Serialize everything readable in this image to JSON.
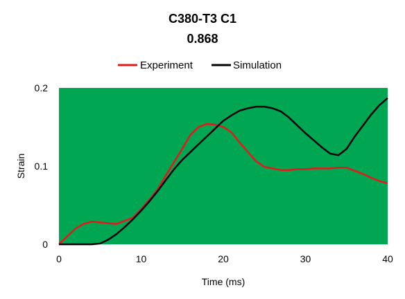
{
  "chart_data": {
    "type": "line",
    "title": "C380-T3 C1",
    "subtitle": "0.868",
    "xlabel": "Time (ms)",
    "ylabel": "Strain",
    "xlim": [
      0,
      40
    ],
    "ylim": [
      0,
      0.2
    ],
    "x_ticks": [
      "0",
      "10",
      "20",
      "30",
      "40"
    ],
    "y_ticks": [
      "0",
      "0.1",
      "0.2"
    ],
    "plot_background": "#00a651",
    "legend_position": "top",
    "series": [
      {
        "name": "Experiment",
        "color": "#e31a1c",
        "x": [
          0,
          1,
          2,
          3,
          4,
          5,
          6,
          7,
          8,
          9,
          10,
          11,
          12,
          13,
          14,
          15,
          16,
          17,
          18,
          19,
          20,
          21,
          22,
          23,
          24,
          25,
          26,
          27,
          28,
          29,
          30,
          31,
          32,
          33,
          34,
          35,
          36,
          37,
          38,
          39,
          40
        ],
        "values": [
          0.0,
          0.01,
          0.02,
          0.026,
          0.029,
          0.028,
          0.027,
          0.026,
          0.03,
          0.034,
          0.045,
          0.057,
          0.07,
          0.088,
          0.105,
          0.122,
          0.14,
          0.15,
          0.154,
          0.153,
          0.15,
          0.143,
          0.13,
          0.118,
          0.106,
          0.099,
          0.097,
          0.095,
          0.095,
          0.096,
          0.096,
          0.097,
          0.097,
          0.097,
          0.098,
          0.098,
          0.094,
          0.09,
          0.085,
          0.081,
          0.078
        ]
      },
      {
        "name": "Simulation",
        "color": "#000000",
        "x": [
          0,
          1,
          2,
          3,
          4,
          5,
          6,
          7,
          8,
          9,
          10,
          11,
          12,
          13,
          14,
          15,
          16,
          17,
          18,
          19,
          20,
          21,
          22,
          23,
          24,
          25,
          26,
          27,
          28,
          29,
          30,
          31,
          32,
          33,
          34,
          35,
          36,
          37,
          38,
          39,
          40
        ],
        "values": [
          0.0,
          0.0,
          0.0,
          0.0,
          0.0,
          0.001,
          0.006,
          0.013,
          0.022,
          0.032,
          0.043,
          0.055,
          0.068,
          0.082,
          0.096,
          0.108,
          0.118,
          0.128,
          0.138,
          0.148,
          0.158,
          0.165,
          0.171,
          0.174,
          0.176,
          0.176,
          0.174,
          0.17,
          0.162,
          0.152,
          0.142,
          0.133,
          0.124,
          0.116,
          0.114,
          0.122,
          0.138,
          0.152,
          0.166,
          0.178,
          0.187
        ]
      }
    ]
  }
}
